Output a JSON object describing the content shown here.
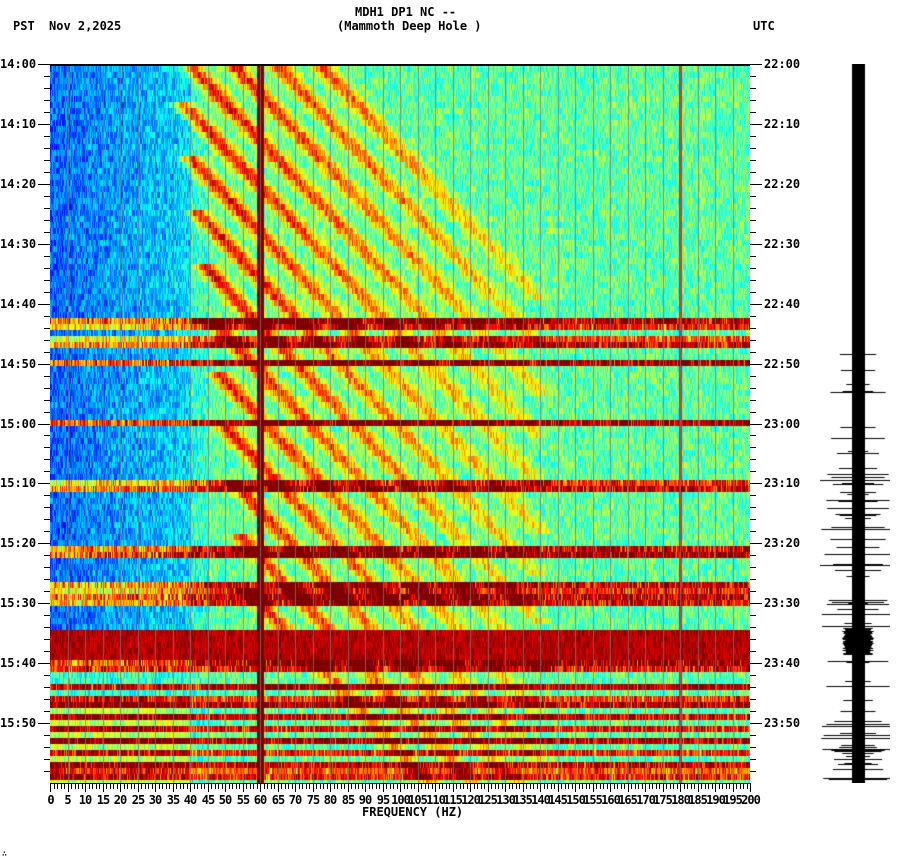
{
  "header": {
    "station_line": "MDH1 DP1 NC --",
    "site_line": "(Mammoth Deep Hole )",
    "left_timezone": "PST",
    "date": "Nov 2,2025",
    "right_timezone": "UTC"
  },
  "footer_mark": "∴",
  "chart_data": {
    "type": "heatmap",
    "title": "MDH1 DP1 NC -- (Mammoth Deep Hole )",
    "subtitle": "Nov 2,2025",
    "xlabel": "FREQUENCY (HZ)",
    "ylabel_left": "PST",
    "ylabel_right": "UTC",
    "xlim": [
      0,
      200
    ],
    "x_ticks": [
      "0",
      "5",
      "10",
      "15",
      "20",
      "25",
      "30",
      "35",
      "40",
      "45",
      "50",
      "55",
      "60",
      "65",
      "70",
      "75",
      "80",
      "85",
      "90",
      "95",
      "100",
      "105",
      "110",
      "115",
      "120",
      "125",
      "130",
      "135",
      "140",
      "145",
      "150",
      "155",
      "160",
      "165",
      "170",
      "175",
      "180",
      "185",
      "190",
      "195",
      "200"
    ],
    "y_ticks_left": [
      "14:00",
      "14:10",
      "14:20",
      "14:30",
      "14:40",
      "14:50",
      "15:00",
      "15:10",
      "15:20",
      "15:30",
      "15:40",
      "15:50"
    ],
    "y_ticks_right": [
      "22:00",
      "22:10",
      "22:20",
      "22:30",
      "22:40",
      "22:50",
      "23:00",
      "23:10",
      "23:20",
      "23:30",
      "23:40",
      "23:50"
    ],
    "time_span_minutes": 120,
    "colormap": "jet",
    "features": {
      "persistent_line_hz": 60,
      "secondary_line_hz": 180,
      "broadband_bursts_pst": [
        "14:42",
        "14:46",
        "14:49",
        "15:28",
        "15:35-15:38",
        "15:43"
      ],
      "quiet_low_freq_band_hz": [
        0,
        40
      ],
      "chirp_arcs": "repeated curved dark-red traces sweeping from low to high frequency over time"
    },
    "grid": true,
    "legend": "none"
  },
  "seismogram": {
    "label": "waveform trace",
    "color": "#000000"
  }
}
